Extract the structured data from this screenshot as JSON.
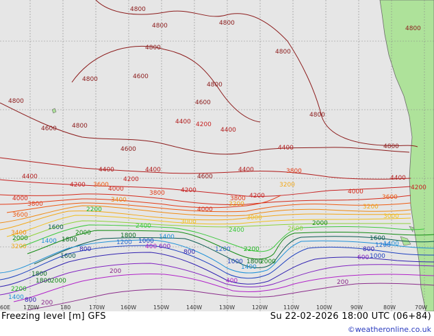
{
  "map": {
    "title": "Freezing level [m] GFS",
    "datetime": "Su 22-02-2026 18:00 UTC (06+84)",
    "credit": "©weatheronline.co.uk",
    "lon_labels": [
      "60E",
      "170W",
      "180",
      "170W",
      "160W",
      "150W",
      "140W",
      "130W",
      "120W",
      "110W",
      "100W",
      "90W",
      "80W",
      "70W"
    ],
    "contour_labels": [
      {
        "text": "4800",
        "color": "#8b1a1a"
      },
      {
        "text": "4600",
        "color": "#8b1a1a"
      },
      {
        "text": "4400",
        "color": "#b01c1c"
      },
      {
        "text": "4200",
        "color": "#c62020"
      },
      {
        "text": "4000",
        "color": "#d42a1a"
      },
      {
        "text": "3800",
        "color": "#e33a16"
      },
      {
        "text": "3600",
        "color": "#ee5a10"
      },
      {
        "text": "3400",
        "color": "#f08a10"
      },
      {
        "text": "3200",
        "color": "#f2a818"
      },
      {
        "text": "3000",
        "color": "#f0c020"
      },
      {
        "text": "2800",
        "color": "#c9d82a"
      },
      {
        "text": "2600",
        "color": "#8fd23a"
      },
      {
        "text": "2400",
        "color": "#3cc83c"
      },
      {
        "text": "2200",
        "color": "#1eb41e"
      },
      {
        "text": "2000",
        "color": "#128a12"
      },
      {
        "text": "1800",
        "color": "#0a6a20"
      },
      {
        "text": "1600",
        "color": "#0a5a50"
      },
      {
        "text": "1400",
        "color": "#1e90d8"
      },
      {
        "text": "1200",
        "color": "#2a6ad0"
      },
      {
        "text": "1000",
        "color": "#1e40c0"
      },
      {
        "text": "800",
        "color": "#3020b0"
      },
      {
        "text": "600",
        "color": "#8020c0"
      },
      {
        "text": "400",
        "color": "#b020c8"
      },
      {
        "text": "200",
        "color": "#8a2a8a"
      }
    ],
    "colors": {
      "ocean": "#e6e6e6",
      "land": "#aee29a",
      "coast": "#6a6a6a",
      "grid": "#8a8a8a"
    }
  }
}
